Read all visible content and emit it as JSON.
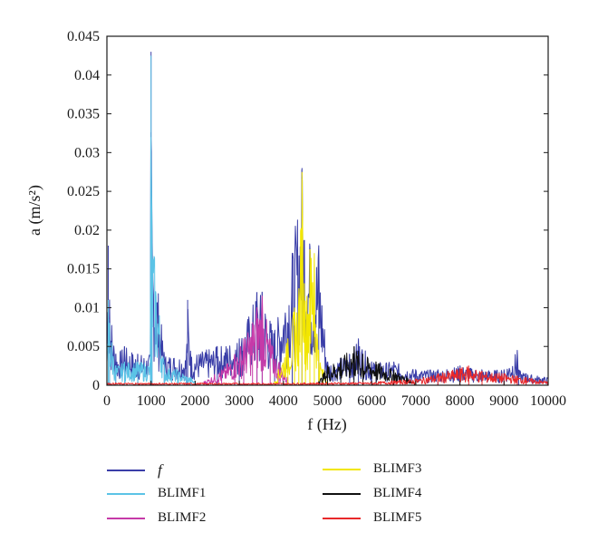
{
  "chart_data": {
    "type": "line",
    "title": "",
    "xlabel": "f (Hz)",
    "ylabel": "a (m/s²)",
    "xlim": [
      0,
      10000
    ],
    "ylim": [
      0,
      0.045
    ],
    "xticks": [
      "0",
      "1000",
      "2000",
      "3000",
      "4000",
      "5000",
      "6000",
      "7000",
      "8000",
      "9000",
      "10000"
    ],
    "yticks": [
      "0",
      "0.005",
      "0.01",
      "0.015",
      "0.02",
      "0.025",
      "0.03",
      "0.035",
      "0.04",
      "0.045"
    ],
    "grid": false,
    "legend_position": "below",
    "series": [
      {
        "name": "f",
        "color": "#3a3ea8",
        "x": [
          0,
          30,
          60,
          200,
          400,
          700,
          985,
          1000,
          1020,
          1300,
          1800,
          1830,
          1900,
          2500,
          3000,
          3400,
          3520,
          3800,
          4200,
          4420,
          4600,
          4800,
          5000,
          5500,
          5700,
          6000,
          6500,
          7000,
          7500,
          8000,
          8500,
          9000,
          9300,
          9330,
          9500,
          10000
        ],
        "y": [
          0.003,
          0.018,
          0.011,
          0.004,
          0.005,
          0.004,
          0.004,
          0.043,
          0.021,
          0.004,
          0.004,
          0.011,
          0.004,
          0.005,
          0.006,
          0.012,
          0.012,
          0.007,
          0.017,
          0.028,
          0.018,
          0.018,
          0.003,
          0.004,
          0.006,
          0.003,
          0.003,
          0.002,
          0.002,
          0.0025,
          0.002,
          0.002,
          0.0045,
          0.002,
          0.0015,
          0.001
        ]
      },
      {
        "name": "BLIMF1",
        "color": "#5bc3e6",
        "x": [
          0,
          30,
          60,
          200,
          400,
          700,
          985,
          1000,
          1020,
          1300,
          1600,
          1900,
          2000
        ],
        "y": [
          0.003,
          0.011,
          0.008,
          0.0025,
          0.003,
          0.003,
          0.003,
          0.0425,
          0.021,
          0.0025,
          0.002,
          0.001,
          0.0005
        ]
      },
      {
        "name": "BLIMF2",
        "color": "#c63aa8",
        "x": [
          2200,
          2600,
          2900,
          3100,
          3300,
          3400,
          3520,
          3700,
          3900,
          4100
        ],
        "y": [
          0.0005,
          0.002,
          0.004,
          0.006,
          0.008,
          0.01,
          0.0115,
          0.006,
          0.003,
          0.001
        ]
      },
      {
        "name": "BLIMF3",
        "color": "#f2e600",
        "x": [
          3800,
          4100,
          4250,
          4350,
          4420,
          4500,
          4600,
          4700,
          4800,
          4900,
          5000
        ],
        "y": [
          0.0005,
          0.006,
          0.01,
          0.012,
          0.0275,
          0.01,
          0.0175,
          0.017,
          0.004,
          0.002,
          0.0005
        ]
      },
      {
        "name": "BLIMF4",
        "color": "#111111",
        "x": [
          4800,
          5000,
          5300,
          5600,
          5800,
          6100,
          6500,
          7000
        ],
        "y": [
          0.0005,
          0.0025,
          0.0035,
          0.005,
          0.004,
          0.003,
          0.002,
          0.0005
        ]
      },
      {
        "name": "BLIMF5",
        "color": "#e8282a",
        "x": [
          0,
          2000,
          4000,
          6000,
          7000,
          7500,
          8000,
          8200,
          8500,
          9000,
          9300,
          9500,
          10000
        ],
        "y": [
          0.0003,
          0.0003,
          0.0003,
          0.0004,
          0.0008,
          0.0015,
          0.0022,
          0.0025,
          0.0018,
          0.0015,
          0.0012,
          0.001,
          0.0005
        ]
      }
    ]
  },
  "legend": {
    "items": [
      {
        "label": "f",
        "color": "#3a3ea8"
      },
      {
        "label": "BLIMF1",
        "color": "#5bc3e6"
      },
      {
        "label": "BLIMF2",
        "color": "#c63aa8"
      },
      {
        "label": "BLIMF3",
        "color": "#f2e600"
      },
      {
        "label": "BLIMF4",
        "color": "#111111"
      },
      {
        "label": "BLIMF5",
        "color": "#e8282a"
      }
    ]
  }
}
